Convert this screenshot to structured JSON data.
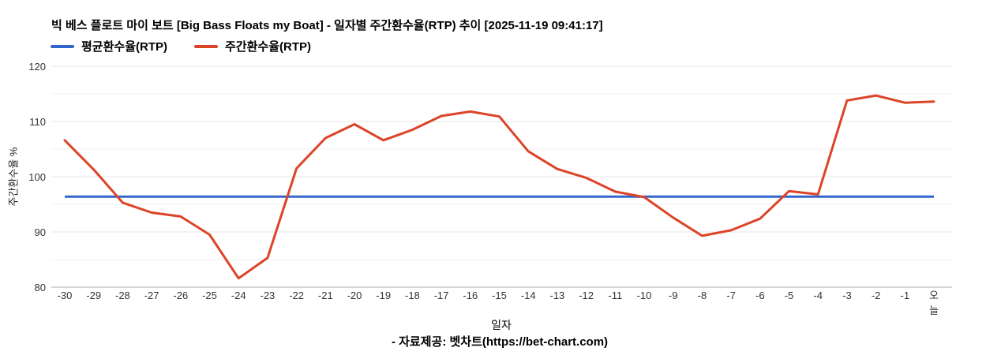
{
  "header": {
    "title": "빅 베스 플로트 마이 보트 [Big Bass Floats my Boat] - 일자별 주간환수율(RTP) 추이 [2025-11-19 09:41:17]"
  },
  "footer": {
    "credit": "- 자료제공: 벳차트(https://bet-chart.com)"
  },
  "chart_data": {
    "type": "line",
    "title": "빅 베스 플로트 마이 보트 [Big Bass Floats my Boat] - 일자별 주간환수율(RTP) 추이 [2025-11-19 09:41:17]",
    "xlabel": "일자",
    "ylabel": "주간환수율 %",
    "ylim": [
      80,
      120
    ],
    "yticks_major": [
      80,
      90,
      100,
      110,
      120
    ],
    "yticks_minor": [
      85,
      95,
      105,
      115
    ],
    "grid": true,
    "legend_position": "top-left",
    "categories": [
      "-30",
      "-29",
      "-28",
      "-27",
      "-26",
      "-25",
      "-24",
      "-23",
      "-22",
      "-21",
      "-20",
      "-19",
      "-18",
      "-17",
      "-16",
      "-15",
      "-14",
      "-13",
      "-12",
      "-11",
      "-10",
      "-9",
      "-8",
      "-7",
      "-6",
      "-5",
      "-4",
      "-3",
      "-2",
      "-1",
      "오늘"
    ],
    "series": [
      {
        "name": "평균환수율(RTP)",
        "type": "constant",
        "value": 96.4,
        "color": "#3366cc"
      },
      {
        "name": "주간환수율(RTP)",
        "type": "line",
        "color": "#dc4428",
        "values": [
          106.6,
          101.3,
          95.3,
          93.5,
          92.8,
          89.5,
          81.6,
          85.3,
          101.5,
          107.0,
          109.5,
          106.6,
          108.5,
          111.0,
          111.8,
          110.9,
          104.6,
          101.4,
          99.8,
          97.3,
          96.3,
          92.6,
          89.3,
          90.3,
          92.4,
          97.4,
          96.8,
          113.8,
          114.7,
          113.4,
          113.6
        ]
      }
    ]
  }
}
